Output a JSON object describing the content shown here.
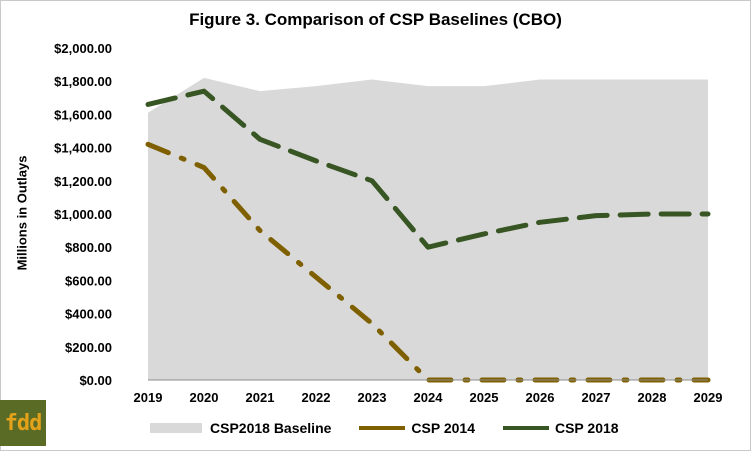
{
  "chart_data": {
    "type": "area+line",
    "title": "Figure 3. Comparison of CSP Baselines (CBO)",
    "ylabel": "Millions in Outlays",
    "xlabel": "",
    "ylim": [
      0,
      2000
    ],
    "yticks": [
      "$0.00",
      "$200.00",
      "$400.00",
      "$600.00",
      "$800.00",
      "$1,000.00",
      "$1,200.00",
      "$1,400.00",
      "$1,600.00",
      "$1,800.00",
      "$2,000.00"
    ],
    "x": [
      "2019",
      "2020",
      "2021",
      "2022",
      "2023",
      "2024",
      "2025",
      "2026",
      "2027",
      "2028",
      "2029"
    ],
    "grid": false,
    "legend": "bottom",
    "series": [
      {
        "name": "CSP2018 Baseline",
        "type": "area",
        "color": "#d9d9d9",
        "values": [
          1610,
          1820,
          1740,
          1770,
          1810,
          1770,
          1770,
          1810,
          1810,
          1810,
          1810
        ]
      },
      {
        "name": "CSP 2014",
        "type": "line",
        "style": "dash-dot",
        "color": "#7f6000",
        "values": [
          1420,
          1280,
          900,
          620,
          340,
          0,
          0,
          0,
          0,
          0,
          0
        ]
      },
      {
        "name": "CSP 2018",
        "type": "line",
        "style": "dash",
        "color": "#375623",
        "values": [
          1660,
          1740,
          1450,
          1320,
          1200,
          800,
          880,
          950,
          990,
          1000,
          1000
        ]
      }
    ]
  },
  "logo": {
    "text": "fdd",
    "bg": "#5a6b25",
    "fg": "#e3a21a"
  }
}
